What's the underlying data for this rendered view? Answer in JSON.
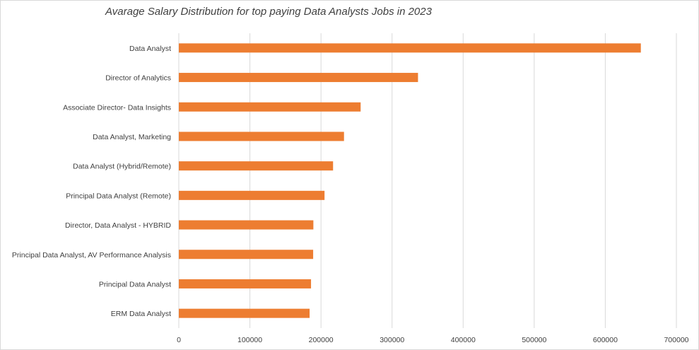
{
  "chart_data": {
    "type": "bar",
    "orientation": "horizontal",
    "title": "Avarage Salary Distribution for top paying Data Analysts Jobs in 2023",
    "xlabel": "",
    "ylabel": "",
    "categories": [
      "Data Analyst",
      "Director of Analytics",
      "Associate Director- Data Insights",
      "Data Analyst, Marketing",
      "Data Analyst (Hybrid/Remote)",
      "Principal Data Analyst (Remote)",
      "Director, Data Analyst - HYBRID",
      "Principal Data Analyst, AV Performance Analysis",
      "Principal Data Analyst",
      "ERM Data Analyst"
    ],
    "values": [
      650000,
      336500,
      255800,
      232400,
      217000,
      205000,
      189300,
      189000,
      186000,
      184000
    ],
    "xlim": [
      0,
      700000
    ],
    "xticks": [
      "0",
      "100000",
      "200000",
      "300000",
      "400000",
      "500000",
      "600000",
      "700000"
    ],
    "grid": "vertical",
    "legend": "none",
    "bar_color": "#ED7D31",
    "grid_color": "#D9D9D9"
  }
}
